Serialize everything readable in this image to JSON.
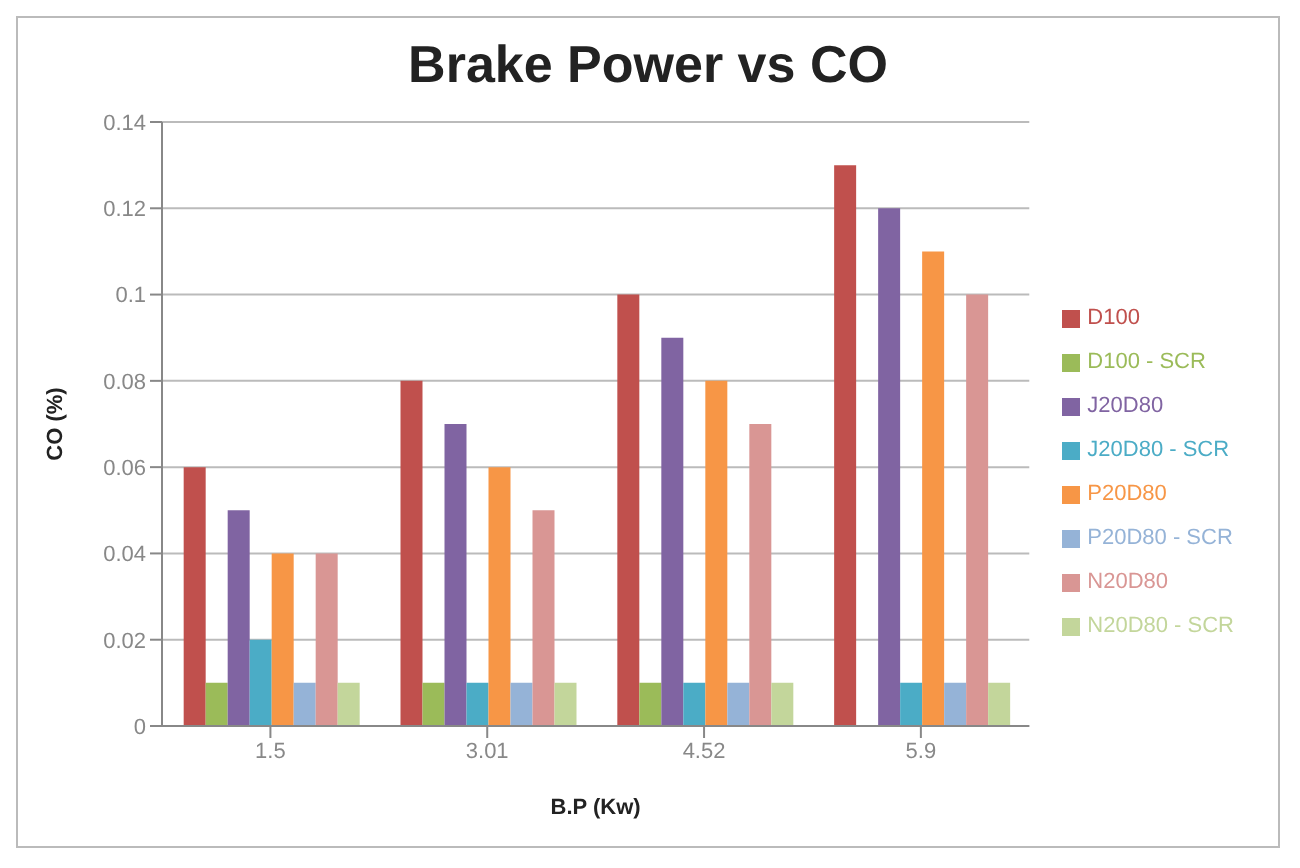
{
  "chart_data": {
    "type": "bar",
    "title": "Brake Power vs CO",
    "xlabel": "B.P (Kw)",
    "ylabel": "CO (%)",
    "categories": [
      "1.5",
      "3.01",
      "4.52",
      "5.9"
    ],
    "series": [
      {
        "name": "D100",
        "color": "#c0504d",
        "values": [
          0.06,
          0.08,
          0.1,
          0.13
        ]
      },
      {
        "name": "D100 - SCR",
        "color": "#9bbb59",
        "values": [
          0.01,
          0.01,
          0.01,
          0
        ]
      },
      {
        "name": "J20D80",
        "color": "#8064a2",
        "values": [
          0.05,
          0.07,
          0.09,
          0.12
        ]
      },
      {
        "name": "J20D80 - SCR",
        "color": "#4bacc6",
        "values": [
          0.02,
          0.01,
          0.01,
          0.01
        ]
      },
      {
        "name": "P20D80",
        "color": "#f79646",
        "values": [
          0.04,
          0.06,
          0.08,
          0.11
        ]
      },
      {
        "name": "P20D80 - SCR",
        "color": "#95b3d7",
        "values": [
          0.01,
          0.01,
          0.01,
          0.01
        ]
      },
      {
        "name": "N20D80",
        "color": "#d99694",
        "values": [
          0.04,
          0.05,
          0.07,
          0.1
        ]
      },
      {
        "name": "N20D80 - SCR",
        "color": "#c3d69b",
        "values": [
          0.01,
          0.01,
          0.01,
          0.01
        ]
      }
    ],
    "ylim": [
      0,
      0.14
    ],
    "yticks": [
      0,
      0.02,
      0.04,
      0.06,
      0.08,
      0.1,
      0.12,
      0.14
    ],
    "grid": "y",
    "legend": "right"
  }
}
